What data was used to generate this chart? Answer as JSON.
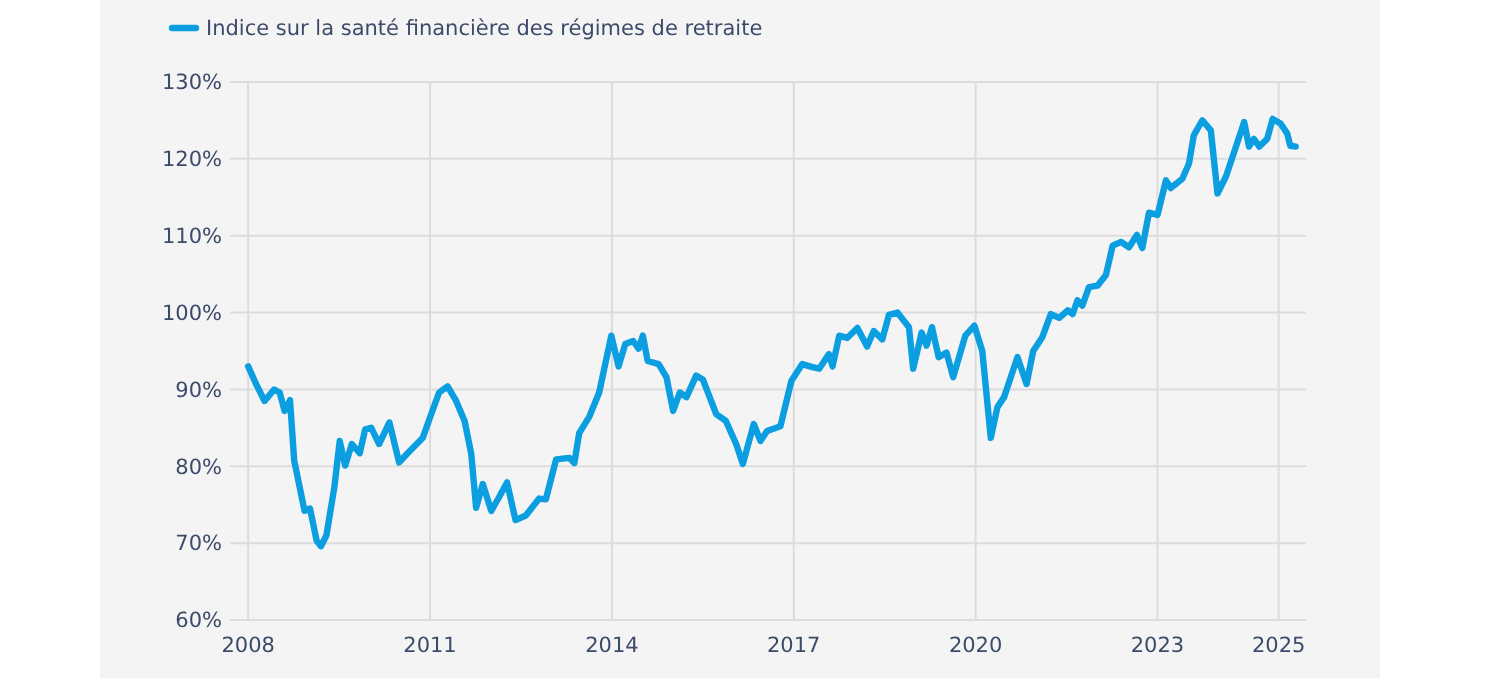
{
  "chart_data": {
    "type": "line",
    "legend": "top left",
    "grid": true,
    "xlim": [
      2007.7,
      2025.45
    ],
    "ylim": [
      60,
      130
    ],
    "xticks": [
      2008,
      2011,
      2014,
      2017,
      2020,
      2023,
      2025
    ],
    "yticks": [
      {
        "value": 60,
        "label": "60%"
      },
      {
        "value": 70,
        "label": "70%"
      },
      {
        "value": 80,
        "label": "80%"
      },
      {
        "value": 90,
        "label": "90%"
      },
      {
        "value": 100,
        "label": "100%"
      },
      {
        "value": 110,
        "label": "110%"
      },
      {
        "value": 120,
        "label": "120%"
      },
      {
        "value": 130,
        "label": "130%"
      }
    ],
    "series": [
      {
        "name": "Indice sur la santé financière des régimes de retraite",
        "color": "#0b9ee0",
        "x": [
          2008.0,
          2008.13,
          2008.27,
          2008.43,
          2008.52,
          2008.6,
          2008.69,
          2008.76,
          2008.93,
          2009.02,
          2009.13,
          2009.2,
          2009.29,
          2009.42,
          2009.51,
          2009.6,
          2009.71,
          2009.84,
          2009.93,
          2010.03,
          2010.16,
          2010.33,
          2010.49,
          2010.63,
          2010.88,
          2011.02,
          2011.15,
          2011.29,
          2011.43,
          2011.57,
          2011.68,
          2011.76,
          2011.87,
          2012.01,
          2012.14,
          2012.27,
          2012.41,
          2012.58,
          2012.8,
          2012.91,
          2013.08,
          2013.3,
          2013.38,
          2013.46,
          2013.63,
          2013.79,
          2013.99,
          2014.11,
          2014.22,
          2014.35,
          2014.44,
          2014.51,
          2014.59,
          2014.77,
          2014.9,
          2015.01,
          2015.12,
          2015.23,
          2015.39,
          2015.5,
          2015.72,
          2015.88,
          2016.05,
          2016.16,
          2016.34,
          2016.45,
          2016.56,
          2016.78,
          2016.96,
          2017.14,
          2017.31,
          2017.42,
          2017.58,
          2017.64,
          2017.75,
          2017.88,
          2018.05,
          2018.21,
          2018.32,
          2018.46,
          2018.57,
          2018.71,
          2018.9,
          2018.97,
          2019.11,
          2019.19,
          2019.28,
          2019.39,
          2019.52,
          2019.63,
          2019.83,
          2019.98,
          2020.11,
          2020.25,
          2020.36,
          2020.47,
          2020.69,
          2020.84,
          2020.95,
          2021.1,
          2021.24,
          2021.38,
          2021.52,
          2021.6,
          2021.68,
          2021.76,
          2021.87,
          2022.01,
          2022.15,
          2022.26,
          2022.4,
          2022.53,
          2022.66,
          2022.75,
          2022.86,
          2023.0,
          2023.14,
          2023.22,
          2023.41,
          2023.52,
          2023.6,
          2023.74,
          2023.88,
          2023.99,
          2024.13,
          2024.43,
          2024.51,
          2024.59,
          2024.68,
          2024.81,
          2024.9,
          2025.03,
          2025.14,
          2025.19,
          2025.28
        ],
        "values": [
          93.0,
          90.7,
          88.5,
          90.0,
          89.6,
          87.2,
          88.6,
          80.7,
          74.2,
          74.5,
          70.3,
          69.6,
          71.0,
          77.2,
          83.3,
          80.1,
          82.9,
          81.7,
          84.8,
          85.0,
          82.9,
          85.7,
          80.5,
          81.7,
          83.7,
          86.8,
          89.6,
          90.4,
          88.5,
          85.9,
          81.6,
          74.6,
          77.7,
          74.2,
          76.0,
          77.9,
          73.0,
          73.6,
          75.8,
          75.7,
          80.9,
          81.1,
          80.4,
          84.3,
          86.5,
          89.6,
          97.0,
          93.0,
          95.9,
          96.3,
          95.3,
          97.0,
          93.7,
          93.3,
          91.6,
          87.2,
          89.6,
          89.0,
          91.8,
          91.3,
          86.8,
          85.9,
          82.9,
          80.3,
          85.5,
          83.3,
          84.6,
          85.2,
          91.1,
          93.3,
          92.9,
          92.7,
          94.6,
          93.0,
          97.0,
          96.7,
          98.0,
          95.6,
          97.6,
          96.5,
          99.7,
          100.0,
          98.1,
          92.7,
          97.4,
          95.7,
          98.1,
          94.2,
          94.8,
          91.6,
          97.0,
          98.3,
          95.0,
          83.7,
          87.7,
          89.0,
          94.2,
          90.7,
          95.0,
          96.8,
          99.8,
          99.3,
          100.3,
          99.8,
          101.6,
          100.9,
          103.3,
          103.5,
          104.9,
          108.7,
          109.2,
          108.5,
          110.1,
          108.4,
          113.0,
          112.7,
          117.2,
          116.2,
          117.4,
          119.4,
          123.1,
          125.0,
          123.7,
          115.5,
          117.7,
          124.8,
          121.6,
          122.6,
          121.6,
          122.6,
          125.2,
          124.6,
          123.3,
          121.7,
          121.6
        ]
      }
    ]
  }
}
